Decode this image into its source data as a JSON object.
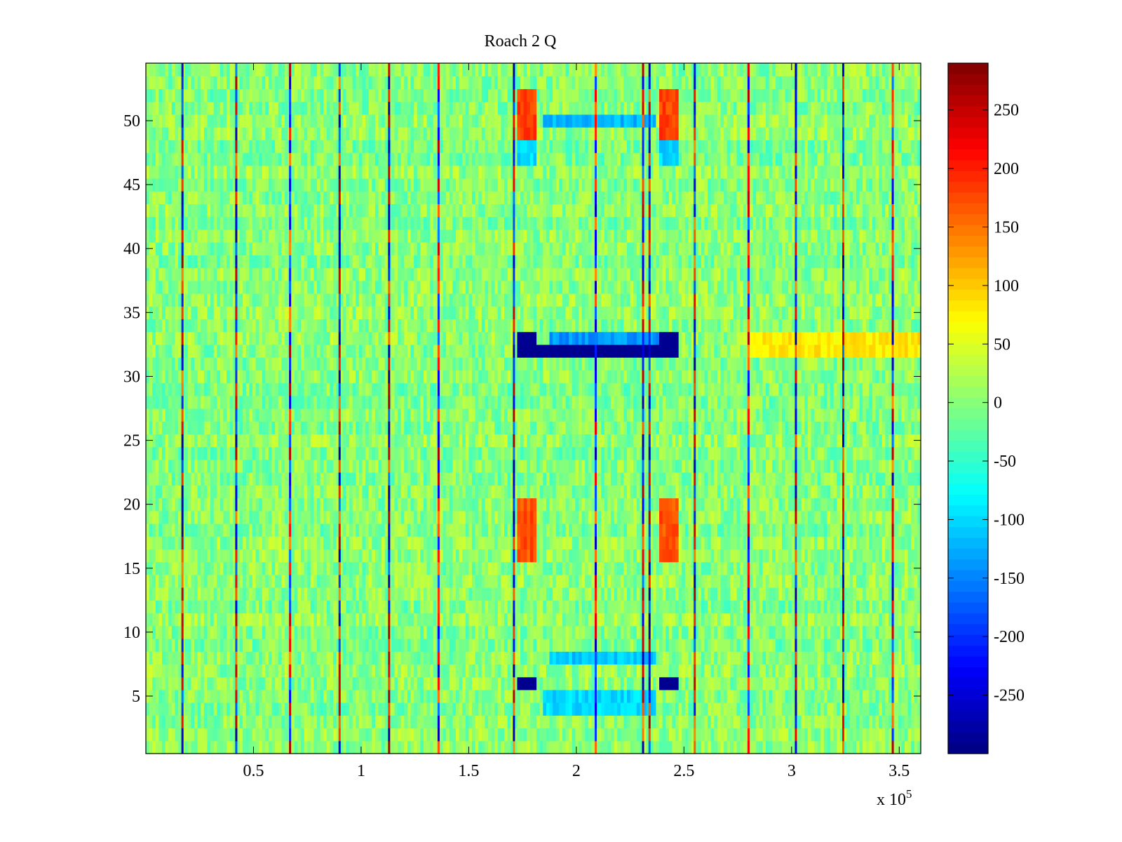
{
  "chart_data": {
    "type": "heatmap",
    "title": "Roach 2 Q",
    "xlabel": "",
    "ylabel": "",
    "xlim": [
      0,
      3.6
    ],
    "ylim": [
      0.5,
      54.5
    ],
    "x_ticks": [
      0.5,
      1,
      1.5,
      2,
      2.5,
      3,
      3.5
    ],
    "x_tick_labels": [
      "0.5",
      "1",
      "1.5",
      "2",
      "2.5",
      "3",
      "3.5"
    ],
    "x_exponent_label": "x 10",
    "x_exponent_power": "5",
    "y_ticks": [
      5,
      10,
      15,
      20,
      25,
      30,
      35,
      40,
      45,
      50
    ],
    "y_tick_labels": [
      "5",
      "10",
      "15",
      "20",
      "25",
      "30",
      "35",
      "40",
      "45",
      "50"
    ],
    "rows": 54,
    "colorbar": {
      "colormap": "jet",
      "clim": [
        -300,
        290
      ],
      "ticks": [
        250,
        200,
        150,
        100,
        50,
        0,
        -50,
        -100,
        -150,
        -200,
        -250
      ],
      "tick_labels": [
        "250",
        "200",
        "150",
        "100",
        "50",
        "0",
        "-50",
        "-100",
        "-150",
        "-200",
        "-250"
      ]
    },
    "baseline_value_range": [
      -40,
      40
    ],
    "vertical_spike_lines_x": [
      0.17,
      0.42,
      0.67,
      0.9,
      1.13,
      1.36,
      1.71,
      2.09,
      2.31,
      2.34,
      2.55,
      2.8,
      3.02,
      3.24,
      3.47
    ],
    "features": [
      {
        "name": "row 32 saturated blue band",
        "x": [
          1.72,
          2.47
        ],
        "rows": [
          32,
          32
        ],
        "value": -290
      },
      {
        "name": "row 33 blue blocks",
        "x": [
          1.72,
          1.82
        ],
        "rows": [
          33,
          33
        ],
        "value": -290
      },
      {
        "name": "row 33 blue blocks right",
        "x": [
          2.38,
          2.47
        ],
        "rows": [
          33,
          33
        ],
        "value": -290
      },
      {
        "name": "row 33 light blue band",
        "x": [
          1.87,
          2.38
        ],
        "rows": [
          33,
          33
        ],
        "value": -140
      },
      {
        "name": "row 6 blue blocks",
        "x": [
          1.72,
          1.82
        ],
        "rows": [
          6,
          6
        ],
        "value": -290
      },
      {
        "name": "row 6 blue blocks right",
        "x": [
          2.38,
          2.47
        ],
        "rows": [
          6,
          6
        ],
        "value": -290
      },
      {
        "name": "upper red blocks",
        "x": [
          1.72,
          1.82
        ],
        "rows": [
          49,
          52
        ],
        "value": 180
      },
      {
        "name": "upper red blocks right",
        "x": [
          2.38,
          2.47
        ],
        "rows": [
          49,
          52
        ],
        "value": 180
      },
      {
        "name": "lower red blocks",
        "x": [
          1.72,
          1.82
        ],
        "rows": [
          16,
          20
        ],
        "value": 170
      },
      {
        "name": "lower red blocks right",
        "x": [
          2.38,
          2.47
        ],
        "rows": [
          16,
          20
        ],
        "value": 170
      },
      {
        "name": "cyan blocks",
        "x": [
          1.72,
          1.82
        ],
        "rows": [
          47,
          48
        ],
        "value": -100
      },
      {
        "name": "cyan blocks right",
        "x": [
          2.38,
          2.47
        ],
        "rows": [
          47,
          48
        ],
        "value": -100
      },
      {
        "name": "row 50 blue stripe",
        "x": [
          1.85,
          2.37
        ],
        "rows": [
          50,
          50
        ],
        "value": -120
      },
      {
        "name": "row 8 blue stripe",
        "x": [
          1.87,
          2.37
        ],
        "rows": [
          8,
          8
        ],
        "value": -110
      },
      {
        "name": "row 4-5 blue stripe",
        "x": [
          1.85,
          2.37
        ],
        "rows": [
          4,
          5
        ],
        "value": -100
      },
      {
        "name": "row 32 warm band right",
        "x": [
          2.8,
          3.6
        ],
        "rows": [
          32,
          33
        ],
        "value": 80
      }
    ]
  }
}
